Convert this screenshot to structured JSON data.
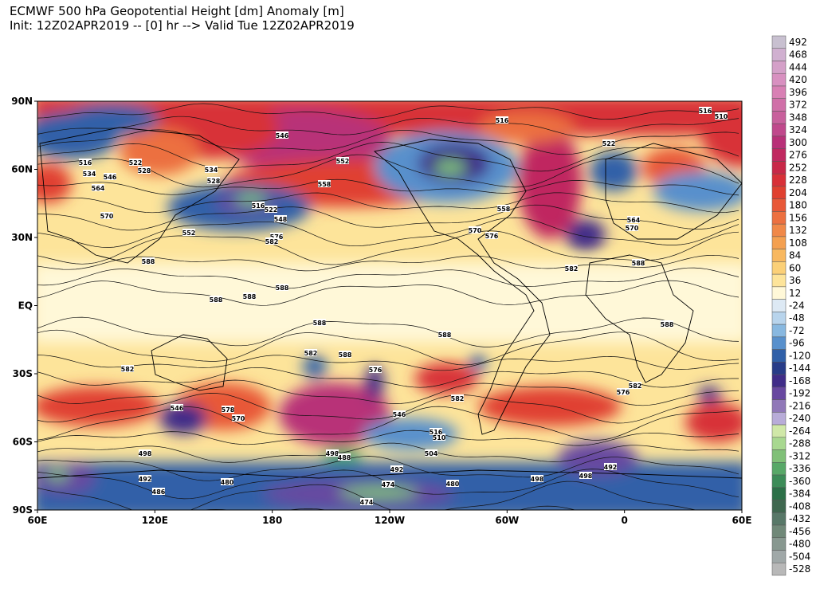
{
  "header": {
    "title": "ECMWF 500 hPa Geopotential Height [dm] Anomaly [m]",
    "subtitle": "Init: 12Z02APR2019 -- [0] hr --> Valid Tue 12Z02APR2019"
  },
  "map": {
    "lat_labels": [
      "90N",
      "60N",
      "30N",
      "EQ",
      "30S",
      "60S",
      "90S"
    ],
    "lon_labels": [
      "60E",
      "120E",
      "180",
      "120W",
      "60W",
      "0",
      "60E"
    ],
    "contour_labels": [
      546,
      552,
      558,
      516,
      534,
      546,
      564,
      570,
      522,
      528,
      534,
      528,
      516,
      522,
      548,
      552,
      576,
      582,
      588,
      588,
      588,
      588,
      588,
      588,
      588,
      582,
      582,
      576,
      582,
      516,
      510,
      522,
      582,
      588,
      588,
      576,
      582,
      546,
      578,
      570,
      498,
      492,
      486,
      480,
      474,
      474,
      480,
      498,
      492,
      504,
      510,
      516,
      498,
      498,
      492,
      488,
      546,
      576,
      570,
      558,
      516,
      564,
      570
    ]
  },
  "colorbar": {
    "labels": [
      492,
      468,
      444,
      420,
      396,
      372,
      348,
      324,
      300,
      276,
      252,
      228,
      204,
      180,
      156,
      132,
      108,
      84,
      60,
      36,
      12,
      -24,
      -48,
      -72,
      -96,
      -120,
      -144,
      -168,
      -192,
      -216,
      -240,
      -264,
      -288,
      -312,
      -336,
      -360,
      -384,
      -408,
      -432,
      -456,
      -480,
      -504,
      -528
    ],
    "colors": [
      "#c8c0d0",
      "#d0b0d0",
      "#d4a0c8",
      "#d890c0",
      "#d880b4",
      "#d070a8",
      "#c8609c",
      "#c0488c",
      "#b83078",
      "#c02860",
      "#c82848",
      "#d83038",
      "#e04030",
      "#e85838",
      "#ec7040",
      "#f08848",
      "#f4a050",
      "#f8b860",
      "#fbd078",
      "#fde49a",
      "#fff8d8",
      "#dde9f4",
      "#b8d4ec",
      "#88b8e0",
      "#5890cc",
      "#3060a8",
      "#283c88",
      "#402c88",
      "#6848a0",
      "#9078b8",
      "#b8acd8",
      "#d0e8a8",
      "#a8d890",
      "#80c078",
      "#58a868",
      "#3c8c58",
      "#2c7048",
      "#406850",
      "#587868",
      "#708878",
      "#889890",
      "#a0a8a8",
      "#b8b8b8"
    ]
  }
}
